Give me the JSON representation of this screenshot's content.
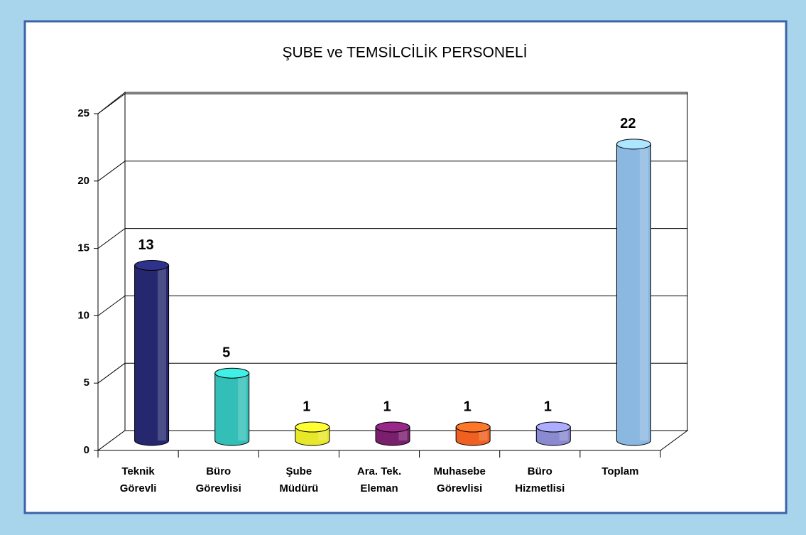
{
  "chart_data": {
    "type": "bar3d",
    "title": "ŞUBE ve TEMSİLCİLİK PERSONELİ",
    "categories": [
      [
        "Teknik",
        "Görevli"
      ],
      [
        "Büro",
        "Görevlisi"
      ],
      [
        "Şube",
        "Müdürü"
      ],
      [
        "Ara. Tek.",
        "Eleman"
      ],
      [
        "Muhasebe",
        "Görevlisi"
      ],
      [
        "Büro",
        "Hizmetlisi"
      ],
      [
        "Toplam"
      ]
    ],
    "values": [
      13,
      5,
      1,
      1,
      1,
      1,
      22
    ],
    "colors": [
      "#25286e",
      "#33bfb8",
      "#e8e82a",
      "#7a1f6e",
      "#f06020",
      "#8a8ad0",
      "#8ab8e0"
    ],
    "ylim": [
      0,
      25
    ],
    "yticks": [
      0,
      5,
      10,
      15,
      20,
      25
    ],
    "grid": true
  }
}
